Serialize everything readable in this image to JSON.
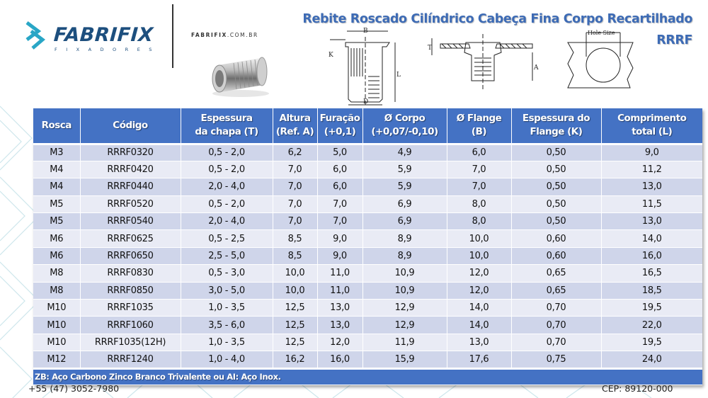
{
  "brand": {
    "name": "FABRIFIX",
    "tagline": "FIXADORES",
    "website_bold": "FABRIFIX",
    "website_rest": ".COM.BR",
    "logo_color": "#1d4f7e",
    "logo_mark_color": "#29a6c6"
  },
  "product": {
    "title_line1": "Rebite Roscado Cilíndrico Cabeça Fina Corpo Recartilhado",
    "title_line2": "RRRF",
    "title_color": "#3d6bb5",
    "photo_icon": "rivet-nut-photo"
  },
  "drawings": {
    "side_view": {
      "labels": [
        "B",
        "K",
        "L",
        "D"
      ]
    },
    "installed_view": {
      "labels": [
        "T",
        "A"
      ]
    },
    "hole_view": {
      "label": "Hole Size"
    }
  },
  "table": {
    "header_color": "#4472c4",
    "row_color_odd": "#cfd5ea",
    "row_color_even": "#e9ebf5",
    "columns": [
      {
        "line1": "Rosca",
        "line2": ""
      },
      {
        "line1": "Código",
        "line2": ""
      },
      {
        "line1": "Espessura",
        "line2": "da chapa (T)"
      },
      {
        "line1": "Altura",
        "line2": "(Ref. A)"
      },
      {
        "line1": "Furação",
        "line2": "(+0,1)"
      },
      {
        "line1": "Ø Corpo",
        "line2": "(+0,07/-0,10)"
      },
      {
        "line1": "Ø Flange",
        "line2": "(B)"
      },
      {
        "line1": "Espessura do",
        "line2": "Flange (K)"
      },
      {
        "line1": "Comprimento",
        "line2": "total (L)"
      }
    ],
    "rows": [
      [
        "M3",
        "RRRF0320",
        "0,5 - 2,0",
        "6,2",
        "5,0",
        "4,9",
        "6,0",
        "0,50",
        "9,0"
      ],
      [
        "M4",
        "RRRF0420",
        "0,5 - 2,0",
        "7,0",
        "6,0",
        "5,9",
        "7,0",
        "0,50",
        "11,2"
      ],
      [
        "M4",
        "RRRF0440",
        "2,0 - 4,0",
        "7,0",
        "6,0",
        "5,9",
        "7,0",
        "0,50",
        "13,0"
      ],
      [
        "M5",
        "RRRF0520",
        "0,5 - 2,0",
        "7,0",
        "7,0",
        "6,9",
        "8,0",
        "0,50",
        "11,5"
      ],
      [
        "M5",
        "RRRF0540",
        "2,0 - 4,0",
        "7,0",
        "7,0",
        "6,9",
        "8,0",
        "0,50",
        "13,0"
      ],
      [
        "M6",
        "RRRF0625",
        "0,5 - 2,5",
        "8,5",
        "9,0",
        "8,9",
        "10,0",
        "0,60",
        "14,0"
      ],
      [
        "M6",
        "RRRF0650",
        "2,5 - 5,0",
        "8,5",
        "9,0",
        "8,9",
        "10,0",
        "0,60",
        "16,0"
      ],
      [
        "M8",
        "RRRF0830",
        "0,5 - 3,0",
        "10,0",
        "11,0",
        "10,9",
        "12,0",
        "0,65",
        "16,5"
      ],
      [
        "M8",
        "RRRF0850",
        "3,0 - 5,0",
        "10,0",
        "11,0",
        "10,9",
        "12,0",
        "0,65",
        "18,5"
      ],
      [
        "M10",
        "RRRF1035",
        "1,0 - 3,5",
        "12,5",
        "13,0",
        "12,9",
        "14,0",
        "0,70",
        "19,5"
      ],
      [
        "M10",
        "RRRF1060",
        "3,5 - 6,0",
        "12,5",
        "13,0",
        "12,9",
        "14,0",
        "0,70",
        "22,0"
      ],
      [
        "M10",
        "RRRF1035(12H)",
        "1,0 - 3,5",
        "12,5",
        "12,0",
        "11,9",
        "13,0",
        "0,70",
        "19,5"
      ],
      [
        "M12",
        "RRRF1240",
        "1,0 - 4,0",
        "16,2",
        "16,0",
        "15,9",
        "17,6",
        "0,75",
        "24,0"
      ]
    ],
    "note": "ZB: Aço Carbono Zinco Branco Trivalente ou AI: Aço Inox."
  },
  "footer": {
    "phone": "+55 (47) 3052-7980",
    "cep": "CEP: 89120-000"
  }
}
